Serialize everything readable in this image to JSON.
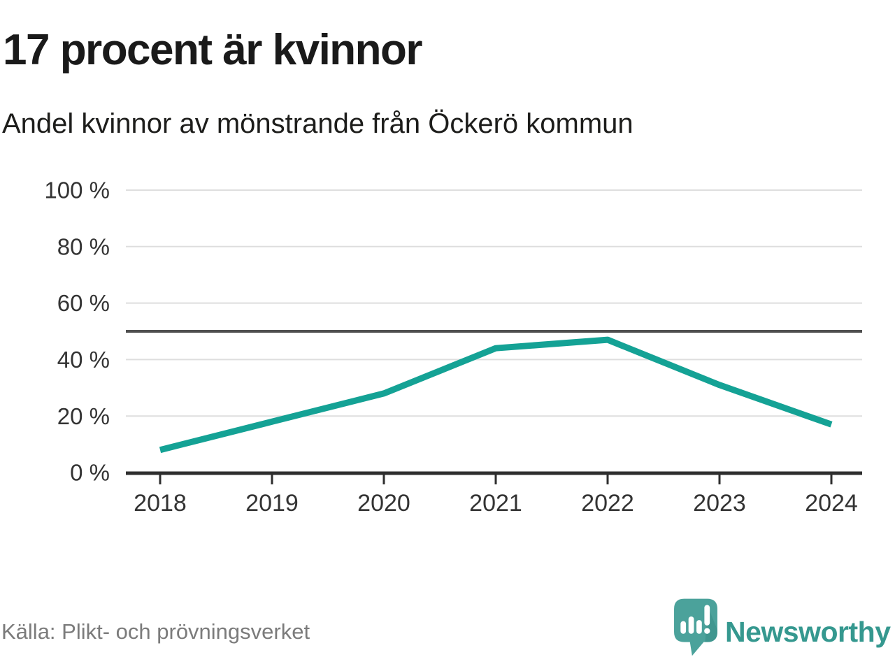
{
  "page": {
    "background": "#ffffff"
  },
  "chart_data": {
    "type": "line",
    "title": "17 procent är kvinnor",
    "subtitle": "Andel kvinnor av mönstrande från Öckerö kommun",
    "categories": [
      "2018",
      "2019",
      "2020",
      "2021",
      "2022",
      "2023",
      "2024"
    ],
    "series": [
      {
        "name": "Andel kvinnor av mönstrande",
        "values": [
          8,
          18,
          28,
          44,
          47,
          31,
          17
        ]
      }
    ],
    "unit": "%",
    "ylim": [
      0,
      100
    ],
    "yticks": [
      0,
      20,
      40,
      60,
      80,
      100
    ],
    "ytick_labels": [
      "0 %",
      "20 %",
      "40 %",
      "60 %",
      "80 %",
      "100 %"
    ],
    "reference_line": {
      "value": 50
    },
    "grid": "horizontal",
    "legend": "none",
    "line_color": "#14a295"
  },
  "footer": {
    "source": "Källa: Plikt- och prövningsverket",
    "branding": {
      "name": "Newsworthy",
      "logo_icon": "speech-bubble-bar-chart-exclamation-icon",
      "text_color": "#35988f",
      "icon_color": "#4ba29b"
    }
  },
  "colors": {
    "axis": "#2e2e2e",
    "grid": "#dedede",
    "reference": "#4f4f4f",
    "tick_text": "#333333"
  }
}
